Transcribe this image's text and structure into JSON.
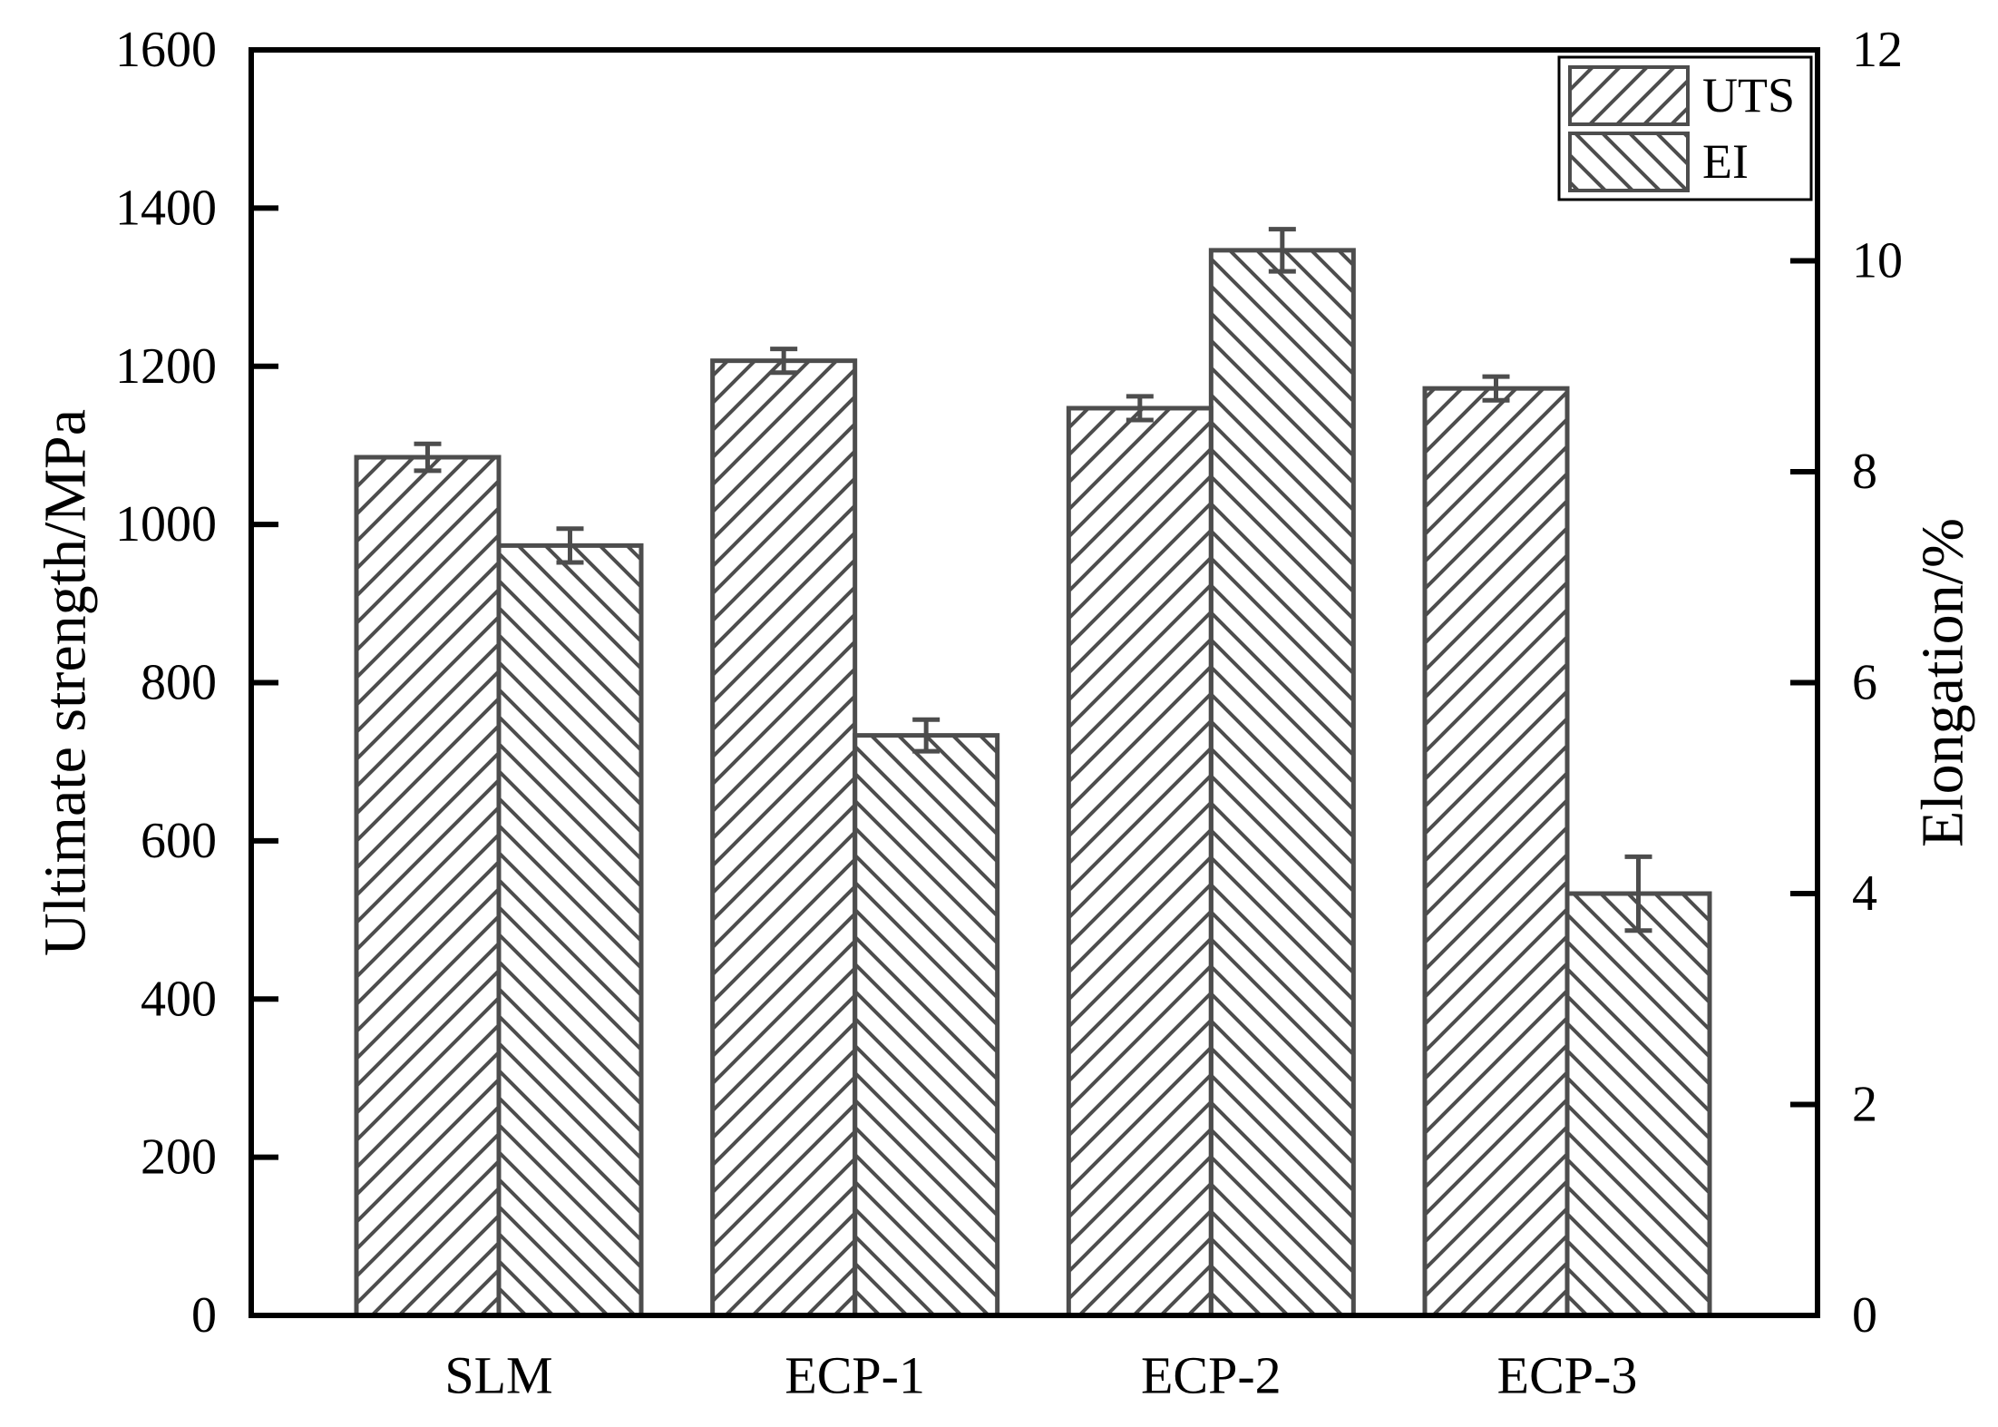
{
  "figure": {
    "description": "Grouped hatched bar chart comparing ultimate tensile strength and elongation for SLM and ECP specimens",
    "background": "#ffffff"
  },
  "chart_data": {
    "type": "bar",
    "categories": [
      "SLM",
      "ECP-1",
      "ECP-2",
      "ECP-3"
    ],
    "series": [
      {
        "name": "UTS",
        "axis": "left",
        "hatch": "forward-diagonal",
        "values": [
          1085,
          1207,
          1147,
          1172
        ],
        "errors": [
          17,
          15,
          15,
          15
        ]
      },
      {
        "name": "EI",
        "axis": "right",
        "hatch": "backward-diagonal",
        "values": [
          7.3,
          5.5,
          10.1,
          4.0
        ],
        "errors": [
          0.16,
          0.15,
          0.2,
          0.35
        ]
      }
    ],
    "left_axis": {
      "label": "Ultimate strength/MPa",
      "min": 0,
      "max": 1600,
      "tick_step": 200
    },
    "right_axis": {
      "label": "Elongation/%",
      "min": 0,
      "max": 12,
      "tick_step": 2
    },
    "x_axis": {
      "tick_labels": [
        "SLM",
        "ECP-1",
        "ECP-2",
        "ECP-3"
      ]
    },
    "legend": {
      "entries": [
        "UTS",
        "EI"
      ],
      "position": "top-right-inside"
    },
    "colors": {
      "bar_outline": "#4d4d4d",
      "hatch_line": "#4d4d4d",
      "error_bar": "#4d4d4d",
      "axis_line": "#000000",
      "text": "#000000",
      "background": "#ffffff"
    },
    "layout": {
      "grid": false,
      "bars_per_group": 2,
      "bars_touching_in_group": true,
      "error_bars": true
    }
  }
}
